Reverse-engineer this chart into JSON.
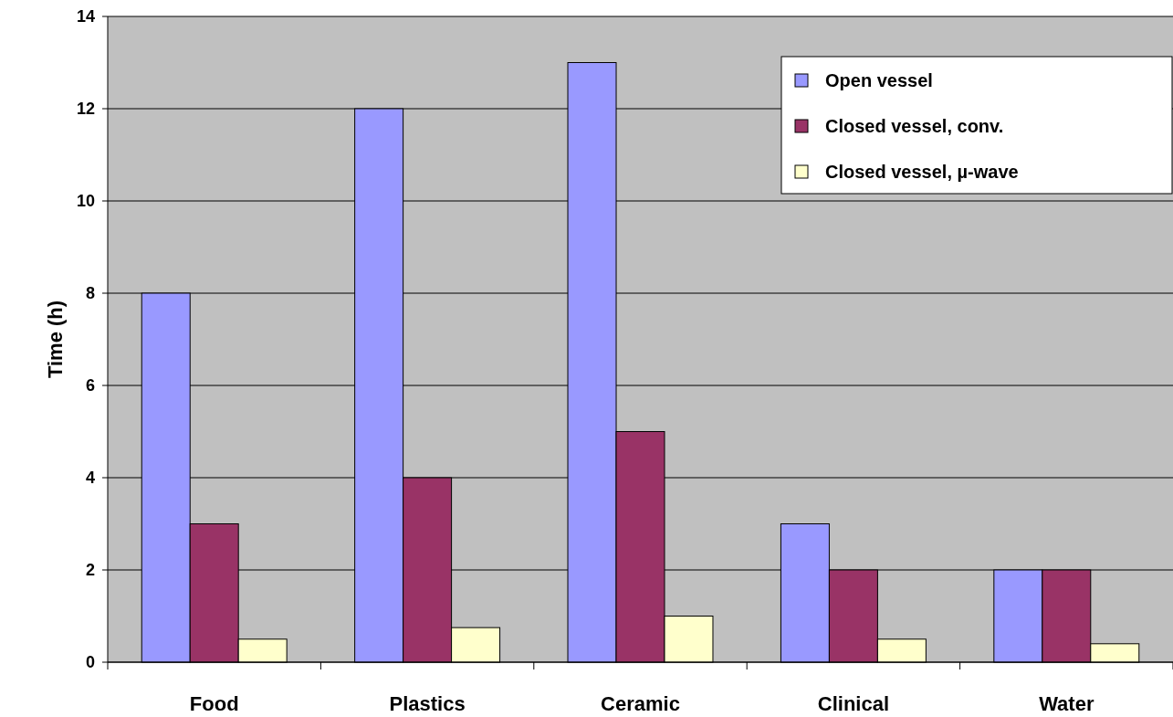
{
  "chart_data": {
    "type": "bar",
    "ylabel": "Time (h)",
    "categories": [
      "Food",
      "Plastics",
      "Ceramic",
      "Clinical",
      "Water"
    ],
    "series": [
      {
        "name": "Open vessel",
        "color": "#9999ff",
        "values": [
          8,
          12,
          13,
          3,
          2
        ]
      },
      {
        "name": "Closed vessel, conv.",
        "color": "#993366",
        "values": [
          3,
          4,
          5,
          2,
          2
        ]
      },
      {
        "name": "Closed vessel, µ-wave",
        "color": "#ffffcc",
        "values": [
          0.5,
          0.75,
          1,
          0.5,
          0.4
        ]
      }
    ],
    "ylim": [
      0,
      14
    ],
    "yticks": [
      0,
      2,
      4,
      6,
      8,
      10,
      12,
      14
    ],
    "grid": "y",
    "legend": "top right"
  }
}
